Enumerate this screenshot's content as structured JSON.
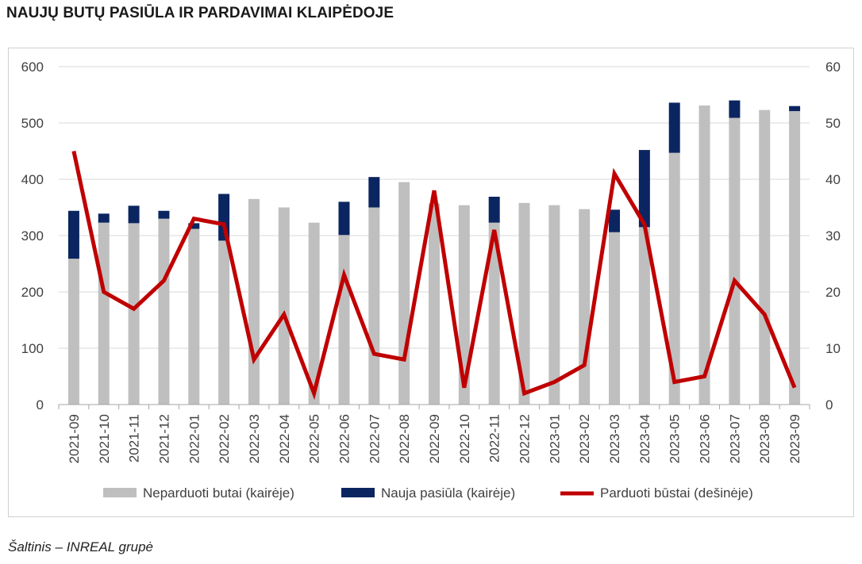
{
  "title": "NAUJŲ BUTŲ PASIŪLA IR PARDAVIMAI KLAIPĖDOJE",
  "source": "Šaltinis – INREAL grupė",
  "chart_data": {
    "type": "bar",
    "stacked": true,
    "categories": [
      "2021-09",
      "2021-10",
      "2021-11",
      "2021-12",
      "2022-01",
      "2022-02",
      "2022-03",
      "2022-04",
      "2022-05",
      "2022-06",
      "2022-07",
      "2022-08",
      "2022-09",
      "2022-10",
      "2022-11",
      "2022-12",
      "2023-01",
      "2023-02",
      "2023-03",
      "2023-04",
      "2023-05",
      "2023-06",
      "2023-07",
      "2023-08",
      "2023-09"
    ],
    "series": [
      {
        "name": "Neparduoti butai (kairėje)",
        "type": "bar",
        "axis": "left",
        "color": "#bfbfbf",
        "values": [
          259,
          323,
          322,
          330,
          312,
          291,
          365,
          350,
          323,
          301,
          350,
          395,
          357,
          354,
          323,
          358,
          354,
          347,
          306,
          315,
          447,
          531,
          509,
          523,
          521
        ]
      },
      {
        "name": "Nauja pasiūla (kairėje)",
        "type": "bar",
        "axis": "left",
        "color": "#0b2560",
        "values": [
          85,
          16,
          31,
          14,
          10,
          83,
          0,
          0,
          0,
          59,
          54,
          0,
          0,
          0,
          46,
          0,
          0,
          0,
          40,
          137,
          89,
          0,
          31,
          0,
          9
        ]
      },
      {
        "name": "Parduoti būstai (dešinėje)",
        "type": "line",
        "axis": "right",
        "color": "#c00000",
        "values": [
          45,
          20,
          17,
          22,
          33,
          32,
          8,
          16,
          2,
          23,
          9,
          8,
          38,
          3,
          31,
          2,
          4,
          7,
          41,
          32,
          4,
          5,
          22,
          16,
          3
        ]
      }
    ],
    "ylim_left": [
      0,
      600
    ],
    "ylim_right": [
      0,
      60
    ],
    "yticks_left": [
      "0",
      "100",
      "200",
      "300",
      "400",
      "500",
      "600"
    ],
    "yticks_right": [
      "0",
      "10",
      "20",
      "30",
      "40",
      "50",
      "60"
    ],
    "grid": true,
    "legend_position": "bottom"
  }
}
